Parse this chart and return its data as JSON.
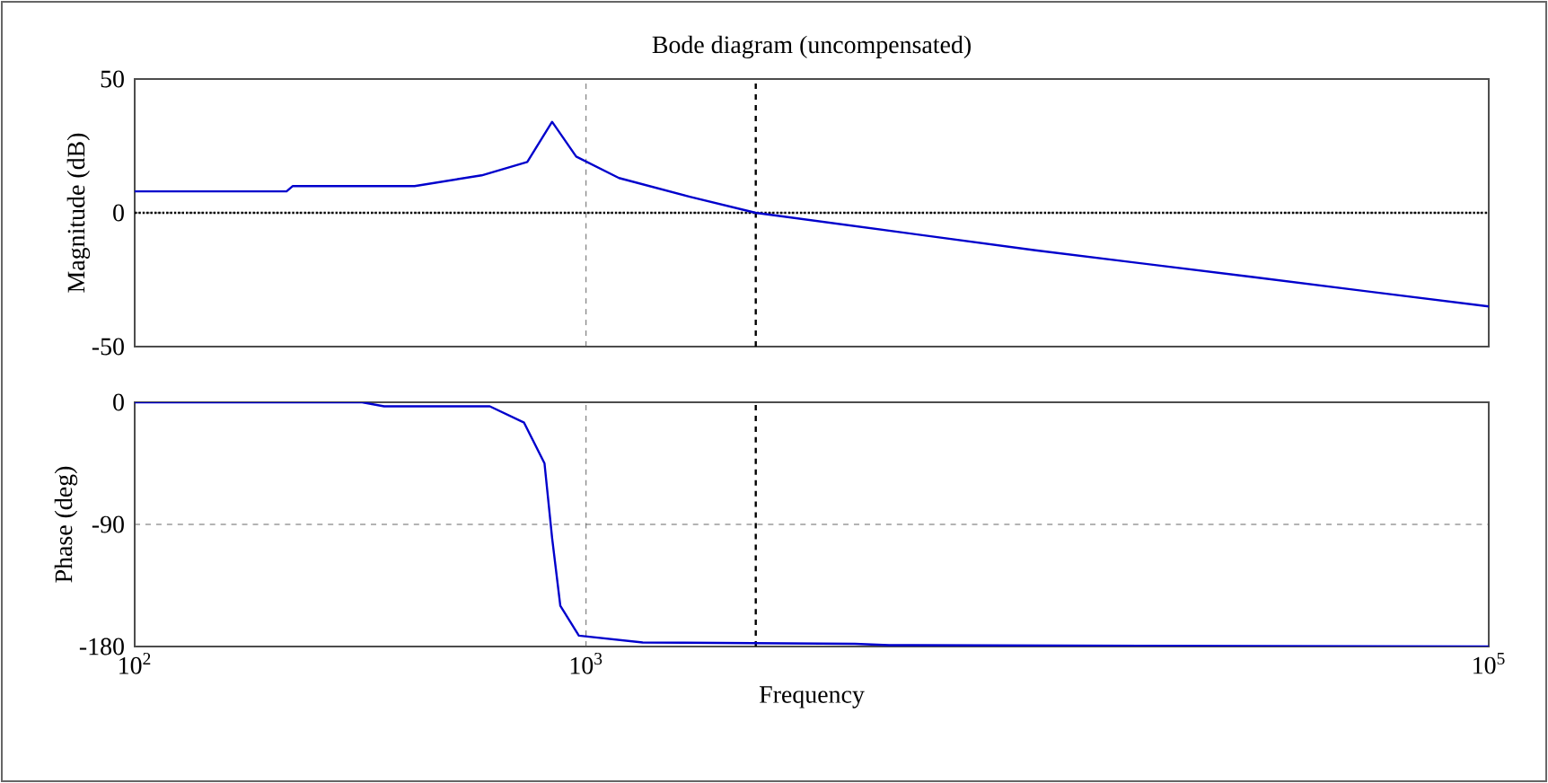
{
  "chart_data": [
    {
      "type": "line",
      "title": "Bode diagram (uncompensated)",
      "ylabel": "Magnitude (dB)",
      "log": "x",
      "grid": true,
      "tick_labels": "y",
      "marker": "none",
      "line_style": "solid",
      "xlim": [
        100,
        100000
      ],
      "xticks": [
        {
          "value": 100,
          "label": null
        },
        {
          "value": 1000,
          "label": null
        },
        {
          "value": 100000,
          "label": null
        }
      ],
      "ylim": [
        -50,
        50
      ],
      "yticks": [
        -50,
        0,
        50
      ],
      "ref_lines": [
        {
          "axis": "y",
          "value": 0,
          "color": "#000000",
          "line_style": "dotted"
        },
        {
          "axis": "x",
          "value": 2377,
          "color": "#000000",
          "line_style": "dashed"
        }
      ],
      "series": [
        {
          "color": "#0000cc",
          "x": [
            100,
            217,
            224,
            417,
            587,
            741,
            841,
            951,
            1183,
            1698,
            2377,
            9900,
            30000,
            100000
          ],
          "values": [
            8,
            8,
            10,
            10,
            14,
            19,
            34,
            21,
            13,
            6,
            0,
            -14,
            -24,
            -35
          ]
        }
      ]
    },
    {
      "type": "line",
      "ylabel": "Phase (deg)",
      "xlabel": "Frequency",
      "log": "x",
      "grid": true,
      "marker": "none",
      "line_style": "solid",
      "xlim": [
        100,
        100000
      ],
      "xticks": [
        {
          "value": 100,
          "label": "10$^{2}$"
        },
        {
          "value": 1000,
          "label": "10$^{3}$"
        },
        {
          "value": 100000,
          "label": "10$^{5}$"
        }
      ],
      "ylim": [
        -180,
        0
      ],
      "yticks": [
        -180,
        -90,
        0
      ],
      "ref_lines": [
        {
          "axis": "x",
          "value": 2377,
          "color": "#000000",
          "line_style": "dashed"
        }
      ],
      "series": [
        {
          "color": "#0000cc",
          "x": [
            100,
            319,
            357,
            612,
            729,
            809,
            841,
            877,
            964,
            1335,
            3940,
            4690,
            100000
          ],
          "values": [
            0,
            0,
            -3,
            -3,
            -15,
            -45,
            -100,
            -150,
            -172,
            -177,
            -178,
            -179,
            -180
          ]
        }
      ]
    }
  ]
}
